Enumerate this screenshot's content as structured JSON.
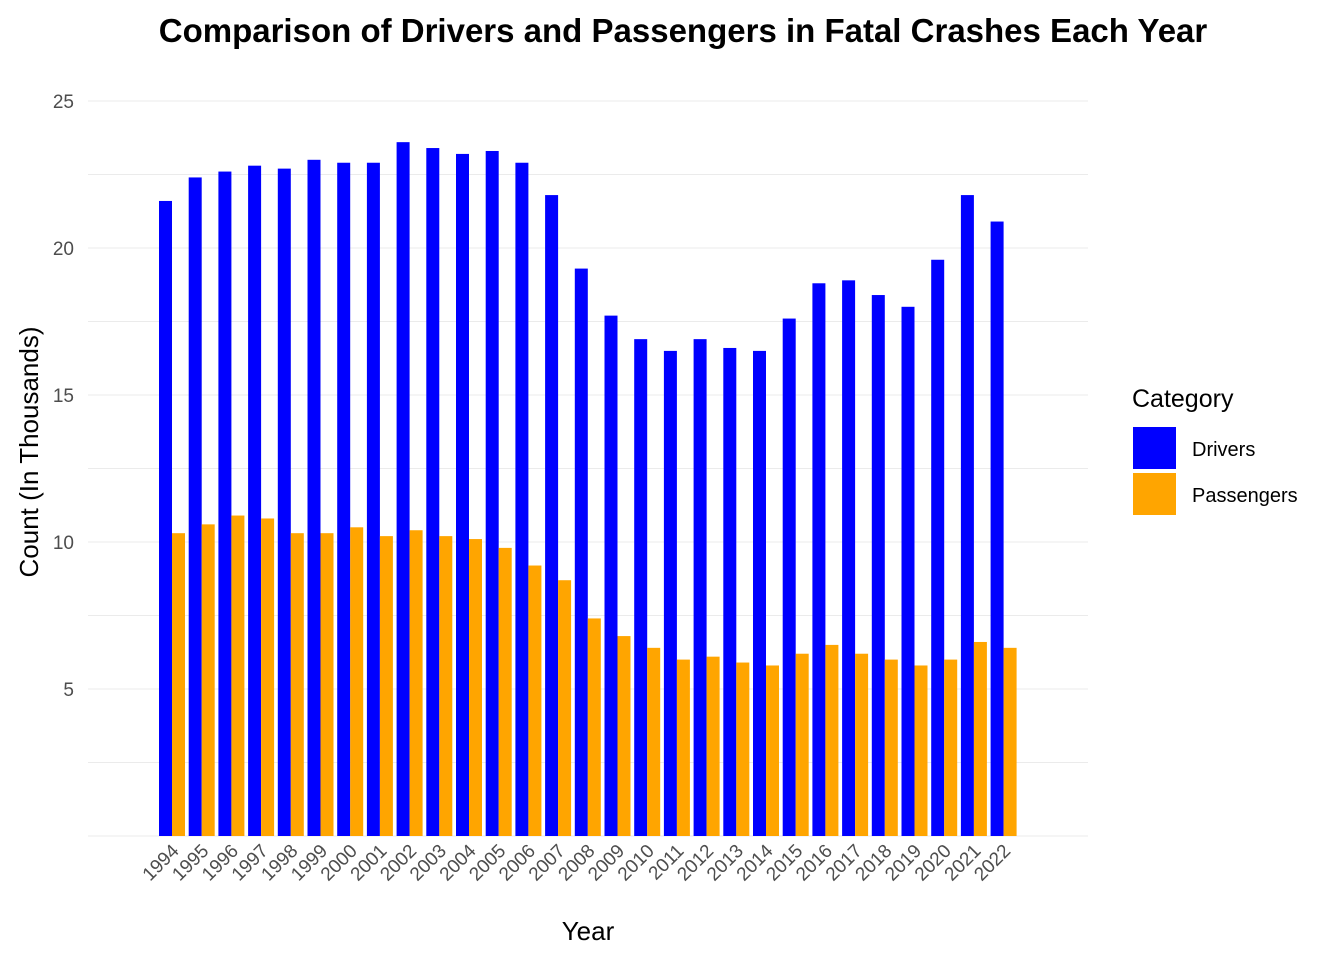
{
  "chart_data": {
    "type": "bar",
    "title": "Comparison of Drivers and Passengers in Fatal Crashes Each Year",
    "xlabel": "Year",
    "ylabel": "Count (In Thousands)",
    "categories": [
      "1994",
      "1995",
      "1996",
      "1997",
      "1998",
      "1999",
      "2000",
      "2001",
      "2002",
      "2003",
      "2004",
      "2005",
      "2006",
      "2007",
      "2008",
      "2009",
      "2010",
      "2011",
      "2012",
      "2013",
      "2014",
      "2015",
      "2016",
      "2017",
      "2018",
      "2019",
      "2020",
      "2021",
      "2022"
    ],
    "series": [
      {
        "name": "Drivers",
        "color": "#0000ff",
        "values": [
          21.6,
          22.4,
          22.6,
          22.8,
          22.7,
          23.0,
          22.9,
          22.9,
          23.6,
          23.4,
          23.2,
          23.3,
          22.9,
          21.8,
          19.3,
          17.7,
          16.9,
          16.5,
          16.9,
          16.6,
          16.5,
          17.6,
          18.8,
          18.9,
          18.4,
          18.0,
          19.6,
          21.8,
          20.9
        ]
      },
      {
        "name": "Passengers",
        "color": "#ffa500",
        "values": [
          10.3,
          10.6,
          10.9,
          10.8,
          10.3,
          10.3,
          10.5,
          10.2,
          10.4,
          10.2,
          10.1,
          9.8,
          9.2,
          8.7,
          7.4,
          6.8,
          6.4,
          6.0,
          6.1,
          5.9,
          5.8,
          6.2,
          6.5,
          6.2,
          6.0,
          5.8,
          6.0,
          6.6,
          6.4
        ]
      }
    ],
    "ylim": [
      0,
      25
    ],
    "yticks": [
      5,
      10,
      15,
      20,
      25
    ],
    "grid": true,
    "legend": {
      "title": "Category",
      "position": "right"
    }
  }
}
